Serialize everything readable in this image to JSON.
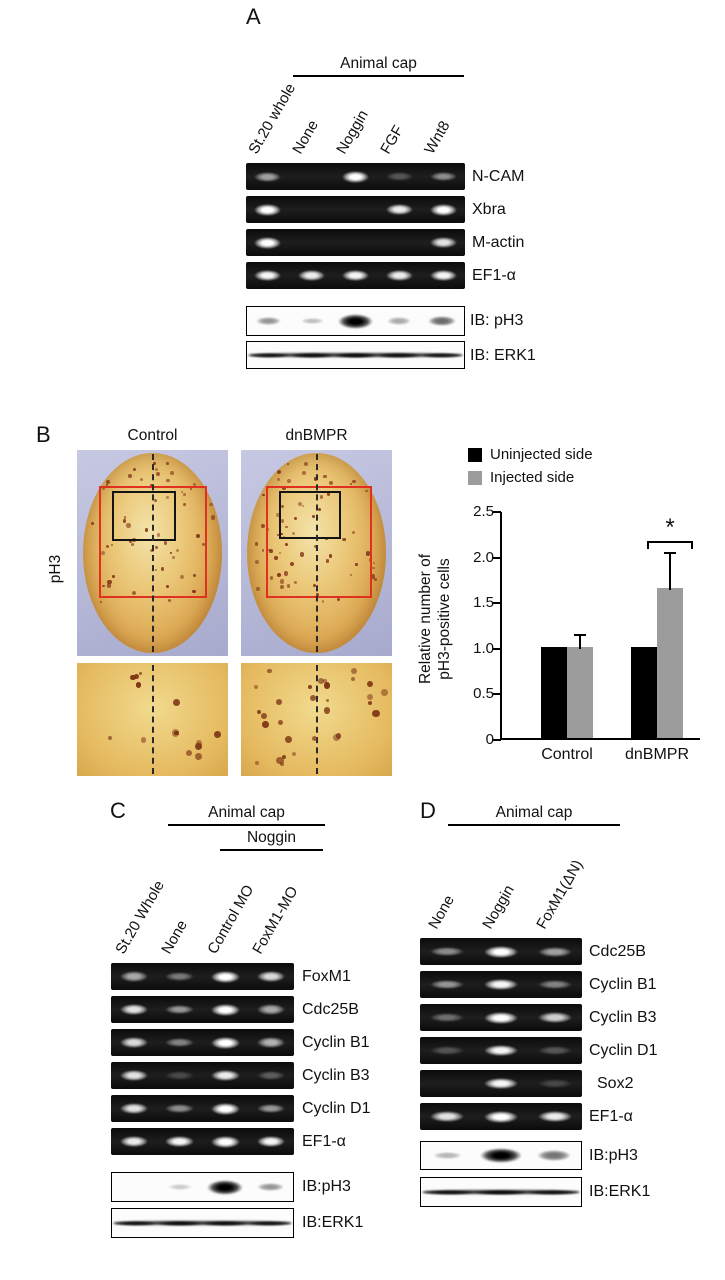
{
  "panelA": {
    "label": "A",
    "group_header": "Animal cap",
    "lanes": [
      "St.20 whole",
      "None",
      "Noggin",
      "FGF",
      "Wnt8"
    ],
    "gels": [
      {
        "label": "N-CAM",
        "bands": [
          0.5,
          0,
          1,
          0.12,
          0.4
        ]
      },
      {
        "label": "Xbra",
        "bands": [
          1,
          0,
          0,
          0.9,
          1
        ]
      },
      {
        "label": "M-actin",
        "bands": [
          1,
          0,
          0,
          0,
          0.85
        ]
      },
      {
        "label": "EF1-α",
        "bands": [
          0.95,
          0.9,
          0.95,
          0.9,
          0.95
        ]
      }
    ],
    "blots": [
      {
        "label": "IB: pH3",
        "bands": [
          0.3,
          0.1,
          1,
          0.2,
          0.5
        ]
      },
      {
        "label": "IB: ERK1",
        "bands": [
          0.75,
          0.75,
          0.8,
          0.75,
          0.75
        ],
        "continuous": true
      }
    ]
  },
  "panelB": {
    "label": "B",
    "row_label": "pH3",
    "image_titles": [
      "Control",
      "dnBMPR"
    ]
  },
  "chart_data": {
    "type": "bar",
    "categories": [
      "Control",
      "dnBMPR"
    ],
    "series": [
      {
        "name": "Uninjected side",
        "color": "#000000",
        "values": [
          1.0,
          1.0
        ],
        "errors": [
          0,
          0
        ]
      },
      {
        "name": "Injected side",
        "color": "#9c9c9c",
        "values": [
          1.0,
          1.65
        ],
        "errors": [
          0.15,
          0.4
        ]
      }
    ],
    "ylabel": "Relative number of pH3-positive cells",
    "ylabel_lines": [
      "Relative number of",
      "pH3-positive cells"
    ],
    "ylim": [
      0,
      2.5
    ],
    "yticks": [
      "0",
      "0.5",
      "1.0",
      "1.5",
      "2.0",
      "2.5"
    ],
    "significance": {
      "group": "dnBMPR",
      "symbol": "*"
    },
    "legend_position": "top-right",
    "grid": false
  },
  "panelC": {
    "label": "C",
    "group_header": "Animal cap",
    "sub_header": "Noggin",
    "lanes": [
      "St.20 Whole",
      "None",
      "Control MO",
      "FoxM1-MO"
    ],
    "gels": [
      {
        "label": "FoxM1",
        "bands": [
          0.55,
          0.3,
          1,
          0.8
        ]
      },
      {
        "label": "Cdc25B",
        "bands": [
          0.85,
          0.45,
          1,
          0.55
        ]
      },
      {
        "label": "Cyclin B1",
        "bands": [
          0.8,
          0.35,
          1,
          0.6
        ]
      },
      {
        "label": "Cyclin B3",
        "bands": [
          0.85,
          0.05,
          0.9,
          0.15
        ]
      },
      {
        "label": "Cyclin D1",
        "bands": [
          0.85,
          0.4,
          1,
          0.45
        ]
      },
      {
        "label": "EF1-α",
        "bands": [
          0.9,
          0.95,
          1,
          0.95
        ]
      }
    ],
    "blots": [
      {
        "label": "IB:pH3",
        "bands": [
          0,
          0.05,
          1,
          0.3
        ]
      },
      {
        "label": "IB:ERK1",
        "bands": [
          0.75,
          0.75,
          0.75,
          0.75
        ],
        "continuous": true
      }
    ]
  },
  "panelD": {
    "label": "D",
    "group_header": "Animal cap",
    "lanes": [
      "None",
      "Noggin",
      "FoxM1(ΔN)"
    ],
    "gels": [
      {
        "label": "Cdc25B",
        "bands": [
          0.4,
          1,
          0.5
        ]
      },
      {
        "label": "Cyclin B1",
        "bands": [
          0.45,
          0.95,
          0.35
        ]
      },
      {
        "label": "Cyclin B3",
        "bands": [
          0.25,
          1,
          0.75
        ]
      },
      {
        "label": "Cyclin D1",
        "bands": [
          0.1,
          0.95,
          0.12
        ]
      },
      {
        "label": "Sox2",
        "bands": [
          0,
          0.95,
          0.04
        ]
      },
      {
        "label": "EF1-α",
        "bands": [
          0.85,
          1,
          0.9
        ]
      }
    ],
    "blots": [
      {
        "label": "IB:pH3",
        "bands": [
          0.15,
          1,
          0.45
        ]
      },
      {
        "label": "IB:ERK1",
        "bands": [
          0.75,
          0.8,
          0.75
        ],
        "continuous": true
      }
    ]
  }
}
